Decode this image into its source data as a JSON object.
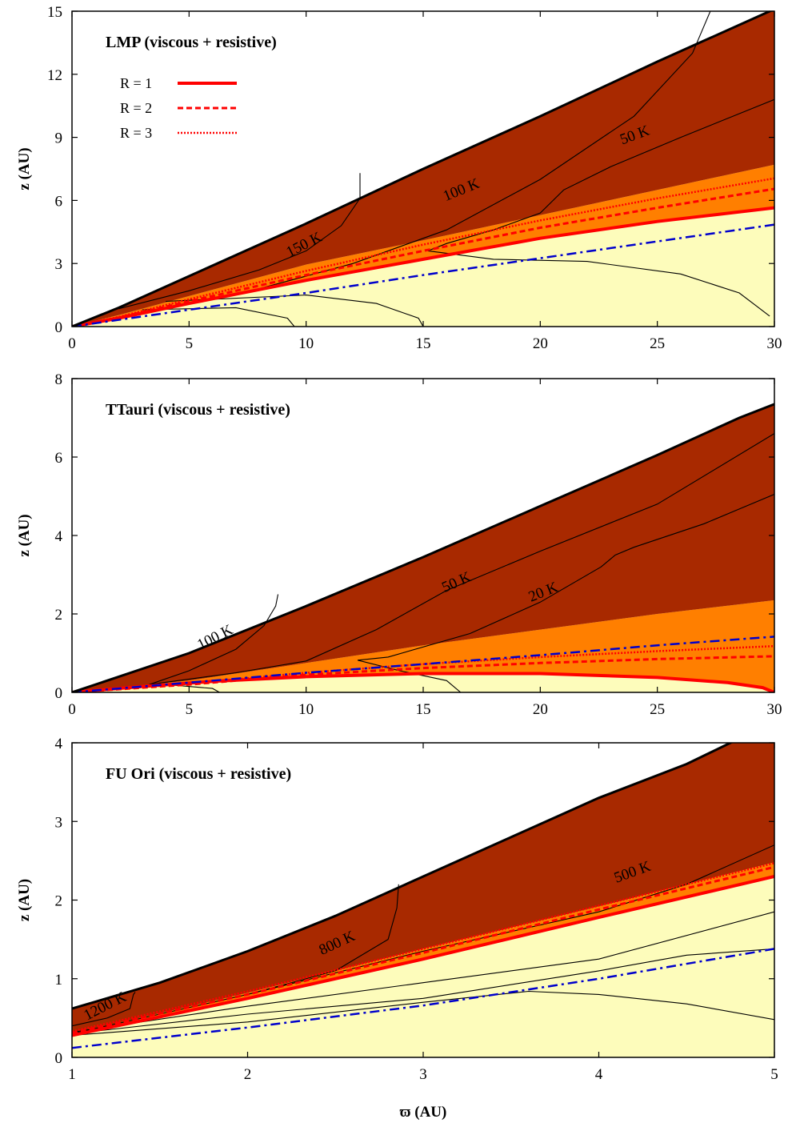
{
  "colors": {
    "dead_zone": "#fdfcbb",
    "active_orange": "#ff7f00",
    "active_dark": "#a82900",
    "outside": "#ffffff",
    "R_curves": "#ff0000",
    "dashdot": "#0000cc",
    "contour": "#000000"
  },
  "chart_data": [
    {
      "type": "contour-region",
      "title": "LMP (viscous + resistive)",
      "xlabel": "",
      "ylabel": "z (AU)",
      "xlim": [
        0,
        30
      ],
      "ylim": [
        0,
        15
      ],
      "xticks": [
        "0",
        "5",
        "10",
        "15",
        "20",
        "25",
        "30"
      ],
      "yticks": [
        "0",
        "3",
        "6",
        "9",
        "12",
        "15"
      ],
      "legend": [
        {
          "label": "R = 1",
          "style": "solid"
        },
        {
          "label": "R = 2",
          "style": "dashed"
        },
        {
          "label": "R = 3",
          "style": "dotted"
        }
      ],
      "surface": [
        [
          0,
          0
        ],
        [
          2,
          0.9
        ],
        [
          5,
          2.4
        ],
        [
          10,
          4.9
        ],
        [
          15,
          7.5
        ],
        [
          20,
          10.0
        ],
        [
          25,
          12.6
        ],
        [
          27,
          13.6
        ],
        [
          30,
          15.1
        ]
      ],
      "orange_top": [
        [
          0,
          0
        ],
        [
          2,
          0.55
        ],
        [
          5,
          1.45
        ],
        [
          10,
          2.95
        ],
        [
          15,
          4.1
        ],
        [
          20,
          5.3
        ],
        [
          25,
          6.5
        ],
        [
          30,
          7.7
        ]
      ],
      "R_curves": [
        {
          "name": "R = 1",
          "points": [
            [
              0,
              0
            ],
            [
              2,
              0.4
            ],
            [
              5,
              1.1
            ],
            [
              10,
              2.2
            ],
            [
              15,
              3.2
            ],
            [
              20,
              4.2
            ],
            [
              25,
              5.0
            ],
            [
              30,
              5.65
            ]
          ]
        },
        {
          "name": "R = 2",
          "points": [
            [
              0,
              0
            ],
            [
              2,
              0.43
            ],
            [
              5,
              1.2
            ],
            [
              10,
              2.45
            ],
            [
              15,
              3.6
            ],
            [
              20,
              4.7
            ],
            [
              25,
              5.65
            ],
            [
              30,
              6.55
            ]
          ]
        },
        {
          "name": "R = 3",
          "points": [
            [
              0,
              0
            ],
            [
              2,
              0.46
            ],
            [
              5,
              1.3
            ],
            [
              10,
              2.65
            ],
            [
              15,
              3.9
            ],
            [
              20,
              5.05
            ],
            [
              25,
              6.1
            ],
            [
              30,
              7.05
            ]
          ]
        }
      ],
      "dashdot": [
        [
          0,
          0
        ],
        [
          5,
          0.8
        ],
        [
          10,
          1.6
        ],
        [
          15,
          2.45
        ],
        [
          20,
          3.25
        ],
        [
          25,
          4.05
        ],
        [
          30,
          4.85
        ]
      ],
      "contours": [
        {
          "label": "150 K",
          "label_at": [
            10,
            3.7
          ],
          "label_angle": 27,
          "points": [
            [
              2,
              0.85
            ],
            [
              5,
              1.7
            ],
            [
              8,
              2.7
            ],
            [
              10,
              3.6
            ],
            [
              11.5,
              4.8
            ],
            [
              12.3,
              6.1
            ],
            [
              12.3,
              7.3
            ]
          ]
        },
        {
          "label": "100 K",
          "label_at": [
            16.7,
            6.3
          ],
          "label_angle": 22,
          "points": [
            [
              3,
              0.6
            ],
            [
              8,
              1.8
            ],
            [
              12,
              3.0
            ],
            [
              16,
              4.6
            ],
            [
              20,
              7.0
            ],
            [
              24,
              10.0
            ],
            [
              26.5,
              13.0
            ],
            [
              27.3,
              15.1
            ]
          ]
        },
        {
          "label": "50 K",
          "label_at": [
            24.1,
            8.9
          ],
          "label_angle": 20,
          "points": [
            [
              15.2,
              3.6
            ],
            [
              16,
              3.95
            ],
            [
              18,
              4.6
            ],
            [
              20,
              5.4
            ],
            [
              21,
              6.5
            ],
            [
              23,
              7.6
            ],
            [
              26,
              9.0
            ],
            [
              30,
              10.8
            ]
          ]
        },
        {
          "label": "",
          "points": [
            [
              15.2,
              3.6
            ],
            [
              18,
              3.2
            ],
            [
              22,
              3.1
            ],
            [
              26,
              2.5
            ],
            [
              28.5,
              1.6
            ],
            [
              29.8,
              0.5
            ]
          ]
        },
        {
          "label": "",
          "points": [
            [
              4,
              1.2
            ],
            [
              10,
              1.5
            ],
            [
              13,
              1.1
            ],
            [
              14.8,
              0.4
            ],
            [
              15,
              0
            ]
          ]
        },
        {
          "label": "",
          "points": [
            [
              3,
              0.8
            ],
            [
              7,
              0.9
            ],
            [
              9.2,
              0.4
            ],
            [
              9.5,
              0
            ]
          ]
        }
      ]
    },
    {
      "type": "contour-region",
      "title": "TTauri (viscous + resistive)",
      "xlabel": "",
      "ylabel": "z (AU)",
      "xlim": [
        0,
        30
      ],
      "ylim": [
        0,
        8
      ],
      "xticks": [
        "0",
        "5",
        "10",
        "15",
        "20",
        "25",
        "30"
      ],
      "yticks": [
        "0",
        "2",
        "4",
        "6",
        "8"
      ],
      "surface": [
        [
          0,
          0
        ],
        [
          5,
          1.0
        ],
        [
          10,
          2.2
        ],
        [
          15,
          3.45
        ],
        [
          20,
          4.75
        ],
        [
          25,
          6.05
        ],
        [
          28.5,
          7.0
        ],
        [
          30,
          7.35
        ]
      ],
      "orange_top": [
        [
          0,
          0
        ],
        [
          5,
          0.3
        ],
        [
          10,
          0.75
        ],
        [
          15,
          1.2
        ],
        [
          20,
          1.6
        ],
        [
          25,
          2.0
        ],
        [
          30,
          2.35
        ]
      ],
      "R_curves": [
        {
          "name": "R = 1",
          "points": [
            [
              0,
              0
            ],
            [
              3,
              0.15
            ],
            [
              6,
              0.28
            ],
            [
              10,
              0.4
            ],
            [
              15,
              0.48
            ],
            [
              20,
              0.48
            ],
            [
              25,
              0.38
            ],
            [
              28,
              0.25
            ],
            [
              29.5,
              0.12
            ],
            [
              30,
              0
            ]
          ]
        },
        {
          "name": "R = 2",
          "points": [
            [
              0,
              0
            ],
            [
              5,
              0.2
            ],
            [
              10,
              0.45
            ],
            [
              15,
              0.62
            ],
            [
              20,
              0.75
            ],
            [
              25,
              0.85
            ],
            [
              30,
              0.92
            ]
          ]
        },
        {
          "name": "R = 3",
          "points": [
            [
              0,
              0
            ],
            [
              5,
              0.22
            ],
            [
              10,
              0.5
            ],
            [
              15,
              0.72
            ],
            [
              20,
              0.9
            ],
            [
              25,
              1.05
            ],
            [
              30,
              1.18
            ]
          ]
        }
      ],
      "dashdot": [
        [
          0,
          0
        ],
        [
          5,
          0.25
        ],
        [
          10,
          0.5
        ],
        [
          15,
          0.72
        ],
        [
          20,
          0.95
        ],
        [
          25,
          1.2
        ],
        [
          30,
          1.42
        ]
      ],
      "contours": [
        {
          "label": "100 K",
          "label_at": [
            6.2,
            1.3
          ],
          "label_angle": 27,
          "points": [
            [
              3.3,
              0.2
            ],
            [
              5,
              0.55
            ],
            [
              7,
              1.1
            ],
            [
              8.2,
              1.7
            ],
            [
              8.7,
              2.2
            ],
            [
              8.8,
              2.5
            ]
          ]
        },
        {
          "label": "50 K",
          "label_at": [
            16.5,
            2.7
          ],
          "label_angle": 24,
          "points": [
            [
              3.3,
              0.2
            ],
            [
              7,
              0.5
            ],
            [
              10,
              0.8
            ],
            [
              13,
              1.6
            ],
            [
              16,
              2.6
            ],
            [
              20,
              3.6
            ],
            [
              25,
              4.8
            ],
            [
              30,
              6.6
            ]
          ]
        },
        {
          "label": "20 K",
          "label_at": [
            20.2,
            2.45
          ],
          "label_angle": 22,
          "points": [
            [
              12.2,
              0.82
            ],
            [
              13.5,
              0.9
            ],
            [
              17,
              1.5
            ],
            [
              20,
              2.3
            ],
            [
              22.6,
              3.2
            ],
            [
              23.2,
              3.5
            ],
            [
              24,
              3.7
            ],
            [
              27,
              4.3
            ],
            [
              30,
              5.05
            ]
          ]
        },
        {
          "label": "",
          "points": [
            [
              12.2,
              0.82
            ],
            [
              14,
              0.55
            ],
            [
              16,
              0.3
            ],
            [
              16.6,
              0
            ]
          ]
        },
        {
          "label": "",
          "points": [
            [
              2,
              0.12
            ],
            [
              4,
              0.2
            ],
            [
              6,
              0.1
            ],
            [
              6.3,
              0
            ]
          ]
        }
      ]
    },
    {
      "type": "contour-region",
      "title": "FU Ori (viscous + resistive)",
      "xlabel": "ϖ (AU)",
      "ylabel": "z (AU)",
      "xlim": [
        1,
        5
      ],
      "ylim": [
        0,
        4
      ],
      "xticks": [
        "1",
        "2",
        "3",
        "4",
        "5"
      ],
      "yticks": [
        "0",
        "1",
        "2",
        "3",
        "4"
      ],
      "surface": [
        [
          1,
          0.62
        ],
        [
          1.5,
          0.95
        ],
        [
          2,
          1.35
        ],
        [
          2.5,
          1.8
        ],
        [
          3,
          2.3
        ],
        [
          3.5,
          2.8
        ],
        [
          4,
          3.3
        ],
        [
          4.5,
          3.73
        ],
        [
          4.75,
          4.0
        ],
        [
          5,
          4.25
        ]
      ],
      "orange_top": [
        [
          1,
          0.3
        ],
        [
          2,
          0.82
        ],
        [
          2.5,
          1.1
        ],
        [
          3,
          1.38
        ],
        [
          3.5,
          1.65
        ],
        [
          4,
          1.92
        ],
        [
          4.5,
          2.2
        ],
        [
          5,
          2.48
        ]
      ],
      "R_curves": [
        {
          "name": "R = 1",
          "points": [
            [
              1,
              0.28
            ],
            [
              2,
              0.75
            ],
            [
              3,
              1.25
            ],
            [
              4,
              1.78
            ],
            [
              5,
              2.3
            ]
          ]
        },
        {
          "name": "R = 2",
          "points": [
            [
              1,
              0.31
            ],
            [
              2,
              0.8
            ],
            [
              3,
              1.33
            ],
            [
              4,
              1.88
            ],
            [
              5,
              2.42
            ]
          ]
        },
        {
          "name": "R = 3",
          "points": [
            [
              1,
              0.33
            ],
            [
              2,
              0.84
            ],
            [
              3,
              1.38
            ],
            [
              4,
              1.93
            ],
            [
              5,
              2.47
            ]
          ]
        }
      ],
      "dashdot": [
        [
          1,
          0.12
        ],
        [
          2,
          0.38
        ],
        [
          3,
          0.66
        ],
        [
          4,
          1.0
        ],
        [
          5,
          1.38
        ]
      ],
      "contours": [
        {
          "label": "1200 K",
          "label_at": [
            1.2,
            0.6
          ],
          "label_angle": 27,
          "points": [
            [
              1,
              0.4
            ],
            [
              1.2,
              0.5
            ],
            [
              1.33,
              0.62
            ],
            [
              1.35,
              0.8
            ],
            [
              1.36,
              0.83
            ]
          ]
        },
        {
          "label": "800 K",
          "label_at": [
            2.52,
            1.4
          ],
          "label_angle": 25,
          "points": [
            [
              1,
              0.3
            ],
            [
              1.5,
              0.55
            ],
            [
              2,
              0.8
            ],
            [
              2.5,
              1.1
            ],
            [
              2.8,
              1.5
            ],
            [
              2.85,
              1.9
            ],
            [
              2.86,
              2.2
            ]
          ]
        },
        {
          "label": "500 K",
          "label_at": [
            4.2,
            2.3
          ],
          "label_angle": 20,
          "points": [
            [
              2,
              0.8
            ],
            [
              3,
              1.35
            ],
            [
              4,
              1.85
            ],
            [
              4.5,
              2.2
            ],
            [
              5,
              2.7
            ]
          ]
        },
        {
          "label": "",
          "points": [
            [
              1,
              0.32
            ],
            [
              2,
              0.65
            ],
            [
              3,
              0.95
            ],
            [
              4,
              1.25
            ],
            [
              5,
              1.85
            ]
          ]
        },
        {
          "label": "",
          "points": [
            [
              1,
              0.3
            ],
            [
              2,
              0.55
            ],
            [
              3,
              0.75
            ],
            [
              4,
              1.1
            ],
            [
              4.5,
              1.3
            ],
            [
              5,
              1.38
            ]
          ]
        },
        {
          "label": "",
          "points": [
            [
              1,
              0.28
            ],
            [
              2,
              0.45
            ],
            [
              3,
              0.7
            ],
            [
              3.6,
              0.84
            ],
            [
              4,
              0.8
            ],
            [
              4.5,
              0.68
            ],
            [
              5,
              0.48
            ]
          ]
        }
      ]
    }
  ]
}
